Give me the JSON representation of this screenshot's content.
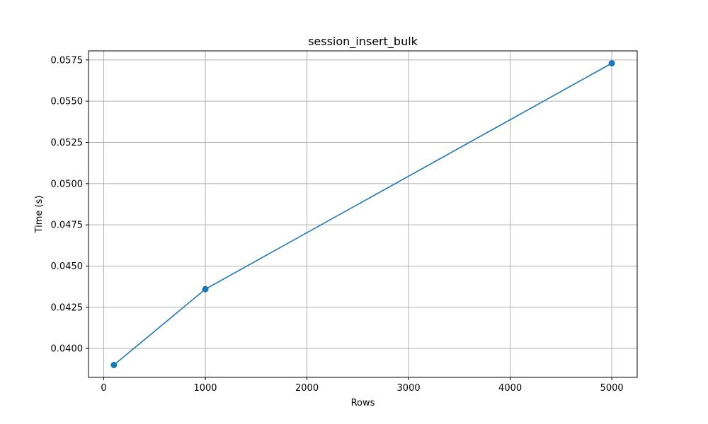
{
  "chart_data": {
    "type": "line",
    "title": "session_insert_bulk",
    "xlabel": "Rows",
    "ylabel": "Time (s)",
    "grid": true,
    "xlim": [
      -150,
      5250
    ],
    "ylim": [
      0.03825,
      0.05805
    ],
    "x_ticks": [
      0,
      1000,
      2000,
      3000,
      4000,
      5000
    ],
    "x_tick_labels": [
      "0",
      "1000",
      "2000",
      "3000",
      "4000",
      "5000"
    ],
    "y_ticks": [
      0.04,
      0.0425,
      0.045,
      0.0475,
      0.05,
      0.0525,
      0.055,
      0.0575
    ],
    "y_tick_labels": [
      "0.0400",
      "0.0425",
      "0.0450",
      "0.0475",
      "0.0500",
      "0.0525",
      "0.0550",
      "0.0575"
    ],
    "series": [
      {
        "color": "#1f77b4",
        "marker": "circle",
        "x": [
          100,
          1000,
          5000
        ],
        "y": [
          0.039,
          0.0436,
          0.0573
        ]
      }
    ]
  }
}
